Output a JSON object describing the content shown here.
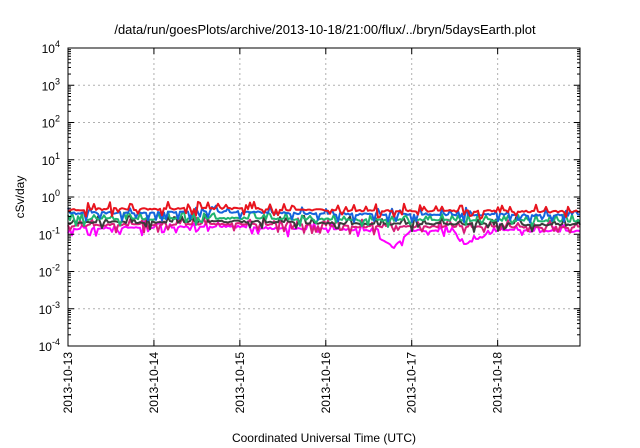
{
  "chart_data": {
    "type": "line",
    "title": "/data/run/goesPlots/archive/2013-10-18/21:00/flux/../bryn/5daysEarth.plot",
    "xlabel": "Coordinated Universal Time (UTC)",
    "ylabel": "cSv/day",
    "x_ticks": [
      "2013-10-13",
      "2013-10-14",
      "2013-10-15",
      "2013-10-16",
      "2013-10-17",
      "2013-10-18"
    ],
    "y_ticks": [
      {
        "base": "10",
        "exp": "4",
        "value": 10000
      },
      {
        "base": "10",
        "exp": "3",
        "value": 1000
      },
      {
        "base": "10",
        "exp": "2",
        "value": 100
      },
      {
        "base": "10",
        "exp": "1",
        "value": 10
      },
      {
        "base": "10",
        "exp": "0",
        "value": 1
      },
      {
        "base": "10",
        "exp": "-1",
        "value": 0.1
      },
      {
        "base": "10",
        "exp": "-2",
        "value": 0.01
      },
      {
        "base": "10",
        "exp": "-3",
        "value": 0.001
      },
      {
        "base": "10",
        "exp": "-4",
        "value": 0.0001
      }
    ],
    "x_range": [
      "2013-10-13T00:00",
      "2013-10-18T23:00"
    ],
    "y_range": [
      0.0001,
      10000
    ],
    "y_scale": "log",
    "grid": true,
    "series": [
      {
        "color": "#e8141e",
        "points": [
          [
            "2013-10-13T00:00",
            0.45
          ],
          [
            "2013-10-13T12:00",
            0.48
          ],
          [
            "2013-10-14T00:00",
            0.47
          ],
          [
            "2013-10-14T12:00",
            0.5
          ],
          [
            "2013-10-15T00:00",
            0.5
          ],
          [
            "2013-10-15T12:00",
            0.46
          ],
          [
            "2013-10-16T00:00",
            0.45
          ],
          [
            "2013-10-16T12:00",
            0.42
          ],
          [
            "2013-10-17T00:00",
            0.43
          ],
          [
            "2013-10-17T12:00",
            0.42
          ],
          [
            "2013-10-18T00:00",
            0.42
          ],
          [
            "2013-10-18T12:00",
            0.4
          ],
          [
            "2013-10-18T23:00",
            0.41
          ]
        ]
      },
      {
        "color": "#1464dc",
        "points": [
          [
            "2013-10-13T00:00",
            0.36
          ],
          [
            "2013-10-13T12:00",
            0.38
          ],
          [
            "2013-10-14T00:00",
            0.37
          ],
          [
            "2013-10-14T12:00",
            0.4
          ],
          [
            "2013-10-15T00:00",
            0.4
          ],
          [
            "2013-10-15T12:00",
            0.37
          ],
          [
            "2013-10-16T00:00",
            0.36
          ],
          [
            "2013-10-16T12:00",
            0.34
          ],
          [
            "2013-10-17T00:00",
            0.35
          ],
          [
            "2013-10-17T12:00",
            0.34
          ],
          [
            "2013-10-18T00:00",
            0.34
          ],
          [
            "2013-10-18T12:00",
            0.32
          ],
          [
            "2013-10-18T23:00",
            0.33
          ]
        ]
      },
      {
        "color": "#1fb46e",
        "points": [
          [
            "2013-10-13T00:00",
            0.25
          ],
          [
            "2013-10-13T12:00",
            0.26
          ],
          [
            "2013-10-14T00:00",
            0.26
          ],
          [
            "2013-10-14T12:00",
            0.27
          ],
          [
            "2013-10-15T00:00",
            0.27
          ],
          [
            "2013-10-15T12:00",
            0.26
          ],
          [
            "2013-10-16T00:00",
            0.25
          ],
          [
            "2013-10-16T12:00",
            0.24
          ],
          [
            "2013-10-17T00:00",
            0.24
          ],
          [
            "2013-10-17T12:00",
            0.24
          ],
          [
            "2013-10-18T00:00",
            0.24
          ],
          [
            "2013-10-18T12:00",
            0.23
          ],
          [
            "2013-10-18T23:00",
            0.23
          ]
        ]
      },
      {
        "color": "#3a3a3a",
        "points": [
          [
            "2013-10-13T00:00",
            0.2
          ],
          [
            "2013-10-13T12:00",
            0.21
          ],
          [
            "2013-10-14T00:00",
            0.21
          ],
          [
            "2013-10-14T12:00",
            0.22
          ],
          [
            "2013-10-15T00:00",
            0.22
          ],
          [
            "2013-10-15T12:00",
            0.21
          ],
          [
            "2013-10-16T00:00",
            0.2
          ],
          [
            "2013-10-16T12:00",
            0.19
          ],
          [
            "2013-10-17T00:00",
            0.19
          ],
          [
            "2013-10-17T12:00",
            0.19
          ],
          [
            "2013-10-18T00:00",
            0.19
          ],
          [
            "2013-10-18T12:00",
            0.18
          ],
          [
            "2013-10-18T23:00",
            0.18
          ]
        ]
      },
      {
        "color": "#d81e78",
        "points": [
          [
            "2013-10-13T00:00",
            0.17
          ],
          [
            "2013-10-13T12:00",
            0.18
          ],
          [
            "2013-10-14T00:00",
            0.18
          ],
          [
            "2013-10-14T12:00",
            0.19
          ],
          [
            "2013-10-15T00:00",
            0.19
          ],
          [
            "2013-10-15T12:00",
            0.18
          ],
          [
            "2013-10-16T00:00",
            0.17
          ],
          [
            "2013-10-16T12:00",
            0.16
          ],
          [
            "2013-10-17T00:00",
            0.16
          ],
          [
            "2013-10-17T12:00",
            0.16
          ],
          [
            "2013-10-18T00:00",
            0.16
          ],
          [
            "2013-10-18T12:00",
            0.155
          ],
          [
            "2013-10-18T23:00",
            0.155
          ]
        ]
      },
      {
        "color": "#ff00ff",
        "points": [
          [
            "2013-10-13T00:00",
            0.14
          ],
          [
            "2013-10-13T12:00",
            0.15
          ],
          [
            "2013-10-14T00:00",
            0.15
          ],
          [
            "2013-10-14T12:00",
            0.16
          ],
          [
            "2013-10-15T00:00",
            0.16
          ],
          [
            "2013-10-15T12:00",
            0.14
          ],
          [
            "2013-10-16T00:00",
            0.14
          ],
          [
            "2013-10-16T12:00",
            0.13
          ],
          [
            "2013-10-16T19:00",
            0.045
          ],
          [
            "2013-10-17T00:00",
            0.13
          ],
          [
            "2013-10-17T12:00",
            0.12
          ],
          [
            "2013-10-17T14:00",
            0.05
          ],
          [
            "2013-10-18T00:00",
            0.13
          ],
          [
            "2013-10-18T12:00",
            0.12
          ],
          [
            "2013-10-18T23:00",
            0.12
          ]
        ]
      }
    ]
  }
}
